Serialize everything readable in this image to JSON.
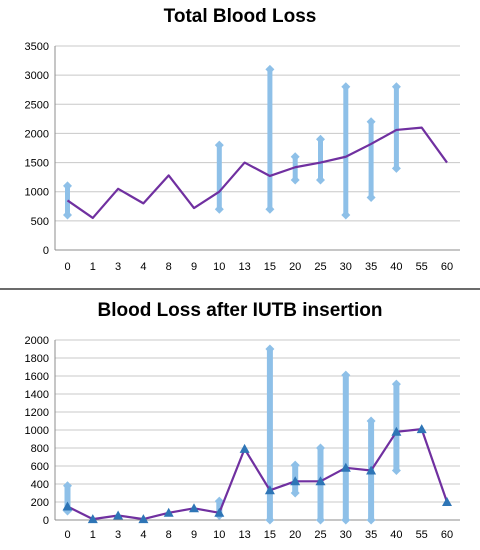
{
  "chart_data": [
    {
      "type": "line",
      "title": "Total Blood Loss",
      "categories": [
        "0",
        "1",
        "3",
        "4",
        "8",
        "9",
        "10",
        "13",
        "15",
        "20",
        "25",
        "30",
        "35",
        "40",
        "55",
        "60"
      ],
      "ylim": [
        0,
        3500
      ],
      "yticks": [
        0,
        500,
        1000,
        1500,
        2000,
        2500,
        3000,
        3500
      ],
      "grid": true,
      "series": [
        {
          "type": "line",
          "values": [
            850,
            550,
            1050,
            800,
            1280,
            720,
            1000,
            1500,
            1270,
            1420,
            1500,
            1600,
            1820,
            2060,
            2100,
            1500
          ]
        }
      ],
      "ranges": [
        {
          "category": "0",
          "low": 600,
          "high": 1100
        },
        {
          "category": "10",
          "low": 700,
          "high": 1800
        },
        {
          "category": "15",
          "low": 700,
          "high": 3100
        },
        {
          "category": "20",
          "low": 1200,
          "high": 1600
        },
        {
          "category": "25",
          "low": 1200,
          "high": 1900
        },
        {
          "category": "30",
          "low": 600,
          "high": 2800
        },
        {
          "category": "35",
          "low": 900,
          "high": 2200
        },
        {
          "category": "40",
          "low": 1400,
          "high": 2800
        }
      ]
    },
    {
      "type": "line",
      "title": "Blood Loss after IUTB insertion",
      "categories": [
        "0",
        "1",
        "3",
        "4",
        "8",
        "9",
        "10",
        "13",
        "15",
        "20",
        "25",
        "30",
        "35",
        "40",
        "55",
        "60"
      ],
      "ylim": [
        0,
        2000
      ],
      "yticks": [
        0,
        200,
        400,
        600,
        800,
        1000,
        1200,
        1400,
        1600,
        1800,
        2000
      ],
      "grid": true,
      "series": [
        {
          "type": "line",
          "values": [
            150,
            10,
            50,
            10,
            80,
            130,
            80,
            790,
            330,
            430,
            430,
            580,
            550,
            980,
            1010,
            200
          ]
        }
      ],
      "ranges": [
        {
          "category": "0",
          "low": 100,
          "high": 380
        },
        {
          "category": "10",
          "low": 50,
          "high": 210
        },
        {
          "category": "15",
          "low": 0,
          "high": 1900
        },
        {
          "category": "20",
          "low": 300,
          "high": 610
        },
        {
          "category": "25",
          "low": 0,
          "high": 800
        },
        {
          "category": "30",
          "low": 0,
          "high": 1610
        },
        {
          "category": "35",
          "low": 0,
          "high": 1100
        },
        {
          "category": "40",
          "low": 550,
          "high": 1510
        }
      ]
    }
  ],
  "colors": {
    "line": "#7030a0",
    "range_bar": "#8ec0e8",
    "marker": "#2e75b6",
    "gridline": "#c8c8c8",
    "axis": "#8c8c8c"
  }
}
